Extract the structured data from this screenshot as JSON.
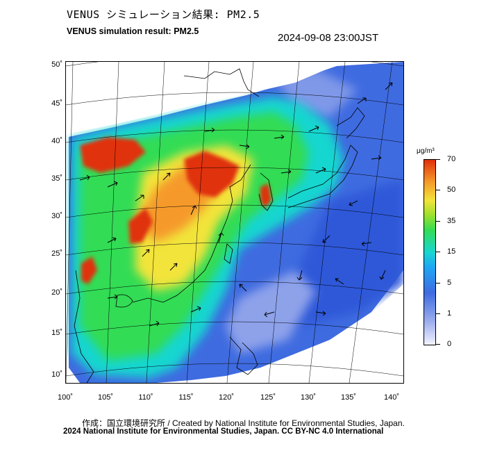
{
  "header": {
    "title_jp": "VENUS シミュレーション結果: PM2.5",
    "title_en": "VENUS simulation result: PM2.5",
    "timestamp": "2024-09-08 23:00JST"
  },
  "map": {
    "lat_labels": [
      "50˚",
      "45˚",
      "40˚",
      "35˚",
      "30˚",
      "25˚",
      "20˚",
      "15˚",
      "10˚"
    ],
    "lon_labels": [
      "100˚",
      "105˚",
      "110˚",
      "115˚",
      "120˚",
      "125˚",
      "130˚",
      "135˚",
      "140˚"
    ],
    "variable": "PM2.5"
  },
  "colorbar": {
    "unit": "μg/m³",
    "labels": [
      "70",
      "50",
      "35",
      "15",
      "5",
      "1",
      "0"
    ],
    "colors": [
      "#e0300c",
      "#f59a2a",
      "#f2e43a",
      "#33dc55",
      "#18d6d0",
      "#3f6be0",
      "#f2f2ff"
    ]
  },
  "footer": {
    "credit_line": "作成：国立環境研究所 / Created by National Institute for Environmental Studies, Japan.",
    "license_line": "2024 National Institute for Environmental Studies, Japan. CC BY-NC 4.0 International"
  }
}
